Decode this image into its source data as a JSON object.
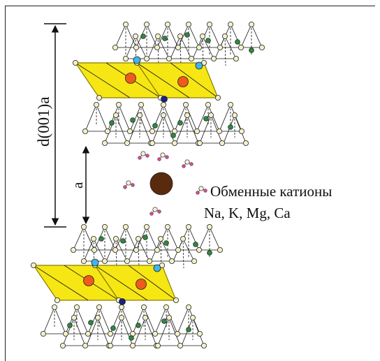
{
  "labels": {
    "d001": "d(001)a",
    "a": "a",
    "cation_title": "Обменные катионы",
    "cation_list": "Na, K, Mg, Ca"
  },
  "colors": {
    "octahedra_fill": "#f5e400",
    "octahedra_edge": "#8a7d00",
    "octahedral_cation": "#f05a1c",
    "oxygen": "#f3efc8",
    "hydroxyl_green": "#2e8a3e",
    "substitution_cyan": "#3fb6e6",
    "substitution_navy": "#1a237e",
    "interlayer_cation": "#5a2a0e",
    "water_oxygen": "#f7f3d8",
    "water_hydrogen": "#d64a9a"
  }
}
